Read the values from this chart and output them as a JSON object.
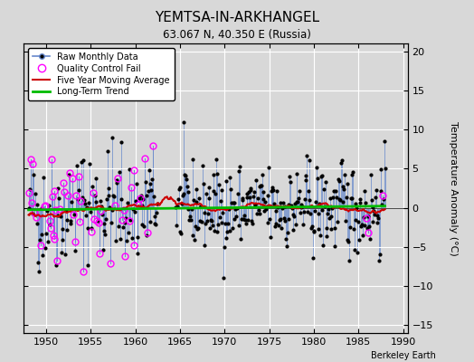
{
  "title": "YEMTSA-IN-ARKHANGEL",
  "subtitle": "63.067 N, 40.350 E (Russia)",
  "ylabel": "Temperature Anomaly (°C)",
  "xlim": [
    1947.5,
    1990.5
  ],
  "ylim": [
    -16,
    21
  ],
  "yticks": [
    -15,
    -10,
    -5,
    0,
    5,
    10,
    15,
    20
  ],
  "xticks": [
    1950,
    1955,
    1960,
    1965,
    1970,
    1975,
    1980,
    1985,
    1990
  ],
  "bg_color": "#d8d8d8",
  "grid_color": "#ffffff",
  "stem_color": "#6688cc",
  "dot_color": "#000000",
  "moving_avg_color": "#cc0000",
  "trend_color": "#00bb00",
  "qc_fail_color": "#ff00ff",
  "watermark": "Berkeley Earth",
  "seed": 42,
  "n_months": 480,
  "start_year": 1948.042,
  "gap_start": 1962.5,
  "gap_end": 1964.5
}
